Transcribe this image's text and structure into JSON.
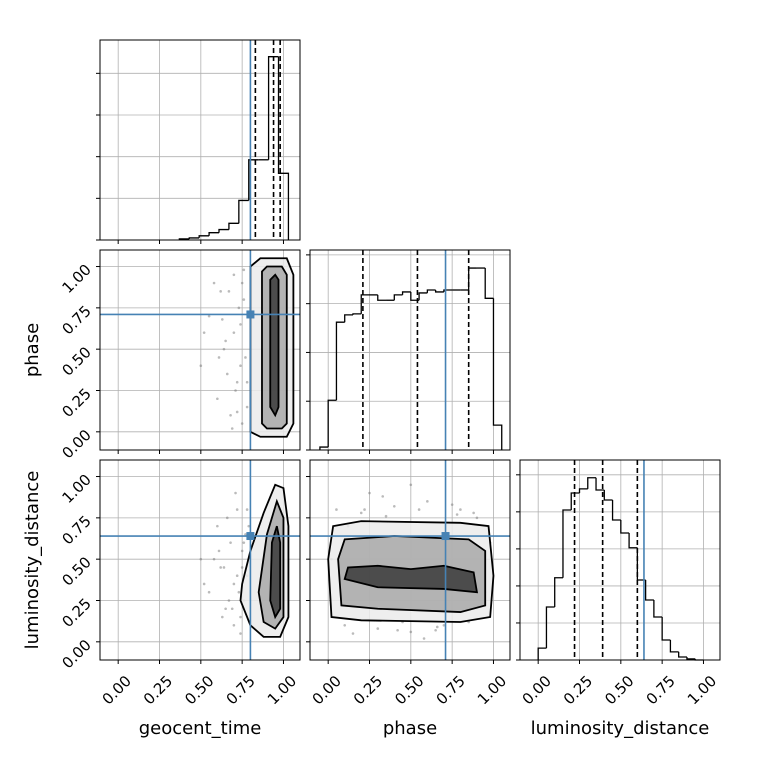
{
  "chart_data": {
    "type": "corner",
    "parameters": [
      "geocent_time",
      "phase",
      "luminosity_distance"
    ],
    "truths": [
      0.8,
      0.71,
      0.64
    ],
    "truth_color": "#4682b4",
    "xlim": [
      -0.11,
      1.1
    ],
    "ticks": [
      {
        "value": 0,
        "label": "0.00"
      },
      {
        "value": 0.25,
        "label": "0.25"
      },
      {
        "value": 0.5,
        "label": "0.50"
      },
      {
        "value": 0.75,
        "label": "0.75"
      },
      {
        "value": 1,
        "label": "1.00"
      }
    ],
    "grid": true,
    "histograms": [
      {
        "bins": [
          0.37,
          0.43,
          0.49,
          0.55,
          0.61,
          0.67,
          0.73,
          0.79,
          0.85,
          0.91,
          0.97,
          1.03
        ],
        "counts": [
          0.05,
          0.1,
          0.2,
          0.35,
          0.5,
          0.8,
          1.9,
          3.85,
          3.85,
          8.8,
          3.2
        ],
        "ylim": [
          0,
          9.6
        ],
        "yticks": [
          0,
          2,
          4,
          6,
          8
        ],
        "quantiles": [
          0.83,
          0.94,
          0.98
        ]
      },
      {
        "bins": [
          -0.05,
          0.0,
          0.05,
          0.1,
          0.15,
          0.2,
          0.25,
          0.3,
          0.35,
          0.4,
          0.45,
          0.5,
          0.55,
          0.6,
          0.65,
          0.7,
          0.75,
          0.8,
          0.85,
          0.9,
          0.95,
          1.0,
          1.05
        ],
        "counts": [
          0.06,
          1.02,
          2.62,
          2.77,
          2.79,
          3.18,
          3.18,
          3.07,
          3.07,
          3.18,
          3.24,
          3.07,
          3.22,
          3.28,
          3.24,
          3.28,
          3.28,
          3.28,
          3.73,
          3.73,
          3.11,
          0.51
        ],
        "ylim": [
          0,
          4.1
        ],
        "yticks": [
          0,
          1,
          2,
          3,
          4
        ],
        "quantiles": [
          0.21,
          0.54,
          0.85
        ]
      },
      {
        "bins": [
          0.0,
          0.05,
          0.1,
          0.15,
          0.2,
          0.25,
          0.3,
          0.35,
          0.4,
          0.45,
          0.5,
          0.55,
          0.6,
          0.65,
          0.7,
          0.75,
          0.8,
          0.85,
          0.9,
          0.95,
          1.0
        ],
        "counts": [
          0.32,
          1.43,
          2.22,
          4.05,
          4.51,
          4.62,
          4.92,
          4.59,
          4.32,
          3.78,
          3.43,
          3.03,
          2.16,
          1.62,
          1.16,
          0.54,
          0.22,
          0.08,
          0.03,
          0.0
        ],
        "ylim": [
          0,
          5.4
        ],
        "yticks": [
          0,
          1,
          2,
          3,
          4,
          5
        ],
        "quantiles": [
          0.22,
          0.39,
          0.6
        ]
      }
    ],
    "pairs": [
      {
        "samples": {
          "x": [
            0.5,
            0.55,
            0.6,
            0.62,
            0.65,
            0.68,
            0.7,
            0.72,
            0.74,
            0.75,
            0.76,
            0.77,
            0.78,
            0.7,
            0.66,
            0.58,
            0.73,
            0.71,
            0.64,
            0.69,
            0.76,
            0.74,
            0.52,
            0.79,
            0.67,
            0.61,
            0.72,
            0.78,
            0.63,
            0.75
          ],
          "y": [
            0.4,
            0.7,
            0.2,
            0.85,
            0.55,
            0.1,
            0.95,
            0.3,
            0.65,
            0.05,
            0.8,
            0.45,
            0.15,
            0.6,
            0.35,
            0.9,
            0.75,
            0.25,
            0.5,
            0.02,
            0.98,
            0.4,
            0.6,
            0.7,
            0.85,
            0.45,
            0.12,
            0.3,
            0.68,
            0.9
          ]
        },
        "contours": [
          {
            "x": [
              0.8,
              0.8,
              0.86,
              1.02,
              1.06,
              1.06,
              1.02,
              0.86
            ],
            "y": [
              0.0,
              1.0,
              1.05,
              1.05,
              0.95,
              0.05,
              -0.03,
              -0.03
            ]
          },
          {
            "x": [
              0.87,
              0.87,
              0.9,
              0.99,
              1.02,
              1.02,
              0.99,
              0.9
            ],
            "y": [
              0.05,
              0.97,
              1.0,
              1.0,
              0.95,
              0.05,
              0.02,
              0.02
            ]
          },
          {
            "x": [
              0.92,
              0.92,
              0.95,
              0.97,
              0.97,
              0.95
            ],
            "y": [
              0.15,
              0.92,
              0.95,
              0.92,
              0.15,
              0.1
            ]
          }
        ]
      },
      {
        "samples": {
          "x": [
            0.5,
            0.55,
            0.6,
            0.62,
            0.65,
            0.68,
            0.7,
            0.72,
            0.74,
            0.75,
            0.76,
            0.77,
            0.78,
            0.7,
            0.66,
            0.58,
            0.73,
            0.71,
            0.64,
            0.69,
            0.76,
            0.74,
            0.52,
            0.79,
            0.67,
            0.61,
            0.72,
            0.78,
            0.63,
            0.75
          ],
          "y": [
            0.5,
            0.3,
            0.7,
            0.45,
            0.2,
            0.6,
            0.35,
            0.8,
            0.15,
            0.55,
            0.25,
            0.65,
            0.4,
            0.1,
            0.75,
            0.5,
            0.3,
            0.9,
            0.45,
            0.2,
            0.6,
            0.05,
            0.35,
            0.7,
            0.25,
            0.55,
            0.4,
            0.8,
            0.15,
            0.45
          ]
        },
        "contours": [
          {
            "x": [
              0.75,
              0.8,
              0.88,
              0.95,
              1.0,
              1.03,
              1.03,
              0.98,
              0.88,
              0.8,
              0.74
            ],
            "y": [
              0.35,
              0.55,
              0.78,
              0.95,
              0.93,
              0.7,
              0.15,
              0.03,
              0.03,
              0.1,
              0.25
            ]
          },
          {
            "x": [
              0.85,
              0.9,
              0.96,
              1.0,
              1.0,
              0.95,
              0.88
            ],
            "y": [
              0.3,
              0.65,
              0.85,
              0.75,
              0.15,
              0.08,
              0.12
            ]
          },
          {
            "x": [
              0.92,
              0.93,
              0.96,
              0.98,
              0.98,
              0.95
            ],
            "y": [
              0.25,
              0.6,
              0.7,
              0.6,
              0.2,
              0.15
            ]
          }
        ]
      },
      {
        "samples": {
          "x": [
            0.05,
            0.1,
            0.2,
            0.3,
            0.4,
            0.5,
            0.6,
            0.7,
            0.8,
            0.9,
            0.95,
            0.15,
            0.25,
            0.35,
            0.45,
            0.55,
            0.65,
            0.75,
            0.85,
            0.02,
            0.98,
            0.33,
            0.66,
            0.12,
            0.88,
            0.5,
            0.42,
            0.58,
            0.22,
            0.78
          ],
          "y": [
            0.8,
            0.1,
            0.78,
            0.08,
            0.82,
            0.06,
            0.85,
            0.1,
            0.8,
            0.75,
            0.3,
            0.05,
            0.9,
            0.76,
            0.12,
            0.8,
            0.07,
            0.83,
            0.12,
            0.5,
            0.6,
            0.88,
            0.09,
            0.7,
            0.78,
            0.95,
            0.07,
            0.02,
            0.8,
            0.77
          ]
        },
        "contours": [
          {
            "x": [
              0.02,
              0.0,
              0.03,
              0.2,
              0.8,
              0.97,
              1.0,
              0.98,
              0.8,
              0.2
            ],
            "y": [
              0.15,
              0.5,
              0.7,
              0.73,
              0.72,
              0.7,
              0.4,
              0.15,
              0.12,
              0.13
            ]
          },
          {
            "x": [
              0.08,
              0.06,
              0.1,
              0.4,
              0.85,
              0.95,
              0.95,
              0.8,
              0.3
            ],
            "y": [
              0.22,
              0.5,
              0.62,
              0.64,
              0.62,
              0.55,
              0.22,
              0.18,
              0.2
            ]
          },
          {
            "x": [
              0.1,
              0.12,
              0.3,
              0.5,
              0.7,
              0.88,
              0.9,
              0.7,
              0.3
            ],
            "y": [
              0.38,
              0.45,
              0.46,
              0.44,
              0.46,
              0.42,
              0.3,
              0.32,
              0.33
            ]
          }
        ]
      }
    ]
  }
}
